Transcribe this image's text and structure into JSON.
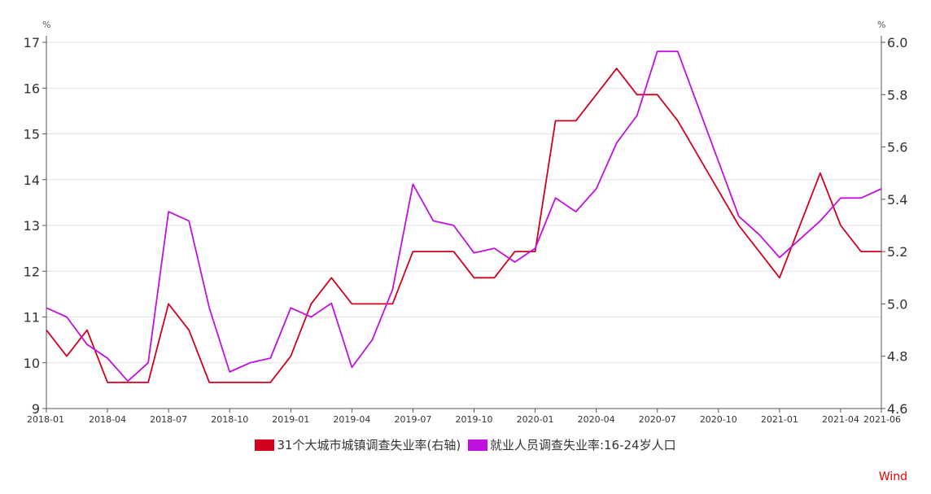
{
  "chart_data": {
    "type": "line",
    "left_axis": {
      "unit": "%",
      "ylim": [
        9,
        17
      ],
      "ticks": [
        "9",
        "10",
        "11",
        "12",
        "13",
        "14",
        "15",
        "16",
        "17"
      ]
    },
    "right_axis": {
      "unit": "%",
      "ylim": [
        4.6,
        6.0
      ],
      "ticks": [
        "4.6",
        "4.8",
        "5.0",
        "5.2",
        "5.4",
        "5.6",
        "5.8",
        "6.0"
      ]
    },
    "x_tick_labels": [
      "2018-01",
      "2018-04",
      "2018-07",
      "2018-10",
      "2019-01",
      "2019-04",
      "2019-07",
      "2019-10",
      "2020-01",
      "2020-04",
      "2020-07",
      "2020-10",
      "2021-01",
      "2021-04",
      "2021-06"
    ],
    "x": [
      "2018-01",
      "2018-02",
      "2018-03",
      "2018-04",
      "2018-05",
      "2018-06",
      "2018-07",
      "2018-08",
      "2018-09",
      "2018-10",
      "2018-11",
      "2018-12",
      "2019-01",
      "2019-02",
      "2019-03",
      "2019-04",
      "2019-05",
      "2019-06",
      "2019-07",
      "2019-08",
      "2019-09",
      "2019-10",
      "2019-11",
      "2019-12",
      "2020-01",
      "2020-02",
      "2020-03",
      "2020-04",
      "2020-05",
      "2020-06",
      "2020-07",
      "2020-08",
      "2020-09",
      "2020-10",
      "2020-11",
      "2020-12",
      "2021-01",
      "2021-02",
      "2021-03",
      "2021-04",
      "2021-05",
      "2021-06"
    ],
    "series": [
      {
        "name": "31个大城市城镇调查失业率(右轴)",
        "axis": "right",
        "color": "#d2001e",
        "values": [
          4.9,
          4.8,
          4.9,
          4.7,
          4.7,
          4.7,
          5.0,
          4.9,
          4.7,
          4.7,
          4.7,
          4.7,
          4.8,
          5.0,
          5.1,
          5.0,
          5.0,
          5.0,
          5.2,
          5.2,
          5.2,
          5.1,
          5.1,
          5.2,
          5.2,
          5.7,
          5.7,
          5.8,
          5.9,
          5.8,
          5.8,
          5.7,
          null,
          null,
          5.3,
          5.2,
          5.1,
          null,
          5.5,
          5.3,
          5.2,
          5.2
        ]
      },
      {
        "name": "就业人员调查失业率:16-24岁人口",
        "axis": "left",
        "color": "#c010e0",
        "values": [
          11.2,
          11.0,
          10.4,
          10.1,
          9.6,
          10.0,
          13.3,
          13.1,
          11.2,
          9.8,
          10.0,
          10.1,
          11.2,
          11.0,
          11.3,
          9.9,
          10.5,
          11.6,
          13.9,
          13.1,
          13.0,
          12.4,
          12.5,
          12.2,
          12.5,
          13.6,
          13.3,
          13.8,
          14.8,
          15.4,
          16.8,
          16.8,
          null,
          null,
          13.2,
          12.8,
          12.3,
          null,
          13.1,
          13.6,
          13.6,
          13.8
        ]
      }
    ]
  },
  "watermark": {
    "text": "Wind",
    "color": "#e60000"
  }
}
